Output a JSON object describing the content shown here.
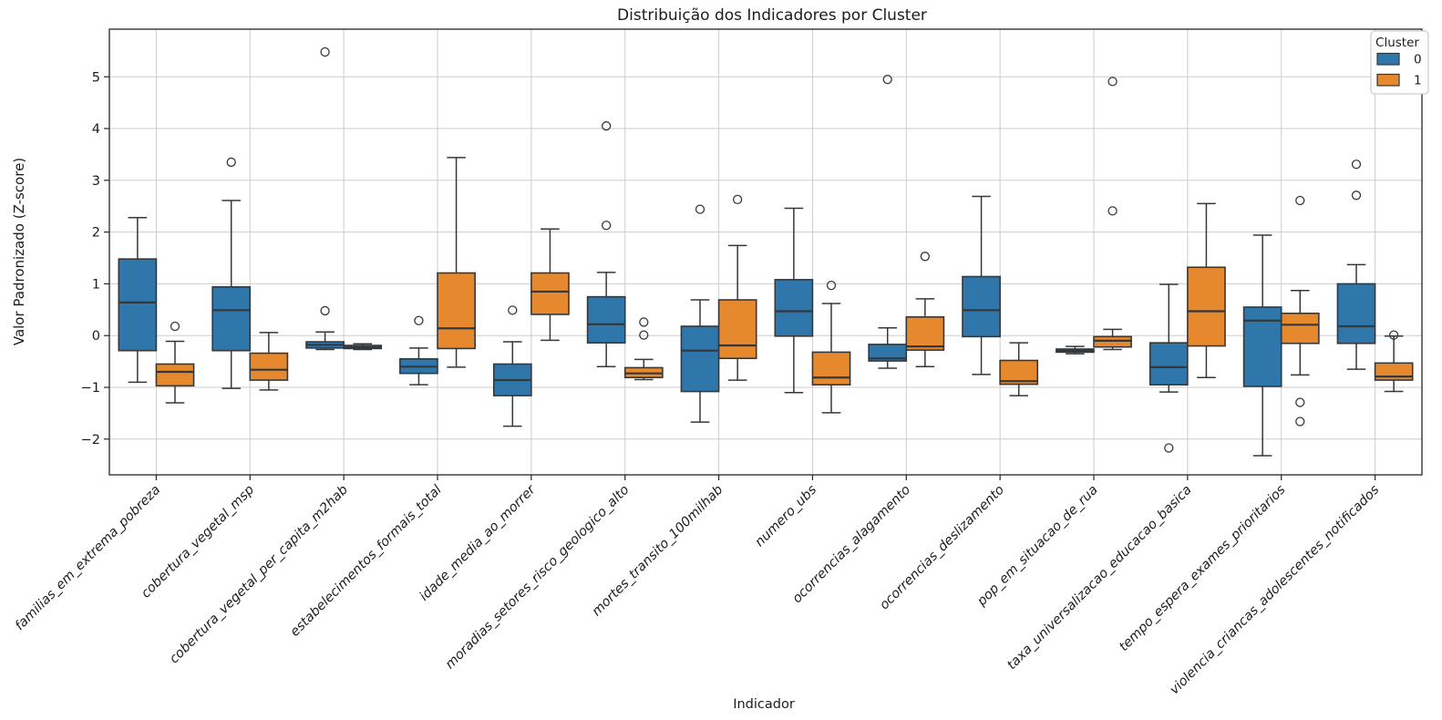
{
  "chart_data": {
    "type": "boxplot",
    "title": "Distribuição dos Indicadores por Cluster",
    "xlabel": "Indicador",
    "ylabel": "Valor Padronizado (Z-score)",
    "grid": true,
    "legend_position": "upper right",
    "y_ticks": [
      -2,
      -1,
      0,
      1,
      2,
      3,
      4,
      5
    ],
    "ylim": [
      -2.69,
      5.92
    ],
    "legend": {
      "title": "Cluster",
      "items": [
        {
          "label": "0",
          "color": "#2f77ab"
        },
        {
          "label": "1",
          "color": "#e6892e"
        }
      ]
    },
    "categories": [
      "familias_em_extrema_pobreza",
      "cobertura_vegetal_msp",
      "cobertura_vegetal_per_capita_m2hab",
      "estabelecimentos_formais_total",
      "idade_media_ao_morrer",
      "moradias_setores_risco_geologico_alto",
      "mortes_transito_100milhab",
      "numero_ubs",
      "ocorrencias_alagamento",
      "ocorrencias_deslizamento",
      "pop_em_situacao_de_rua",
      "taxa_universalizacao_educacao_basica",
      "tempo_espera_exames_prioritarios",
      "violencia_criancas_adolescentes_notificados"
    ],
    "series": [
      {
        "name": "0",
        "color": "#2f77ab",
        "boxes": [
          {
            "whislo": -0.9,
            "q1": -0.29,
            "med": 0.64,
            "q3": 1.48,
            "whishi": 2.28,
            "fliers": []
          },
          {
            "whislo": -1.02,
            "q1": -0.29,
            "med": 0.49,
            "q3": 0.94,
            "whishi": 2.61,
            "fliers": [
              3.35
            ]
          },
          {
            "whislo": -0.27,
            "q1": -0.24,
            "med": -0.18,
            "q3": -0.12,
            "whishi": 0.07,
            "fliers": [
              5.48,
              0.48
            ]
          },
          {
            "whislo": -0.95,
            "q1": -0.73,
            "med": -0.6,
            "q3": -0.45,
            "whishi": -0.24,
            "fliers": [
              0.29
            ]
          },
          {
            "whislo": -1.75,
            "q1": -1.16,
            "med": -0.86,
            "q3": -0.55,
            "whishi": -0.12,
            "fliers": [
              0.49
            ]
          },
          {
            "whislo": -0.6,
            "q1": -0.14,
            "med": 0.22,
            "q3": 0.75,
            "whishi": 1.22,
            "fliers": [
              4.05,
              2.13
            ]
          },
          {
            "whislo": -1.67,
            "q1": -1.08,
            "med": -0.29,
            "q3": 0.18,
            "whishi": 0.69,
            "fliers": [
              2.44
            ]
          },
          {
            "whislo": -1.1,
            "q1": -0.01,
            "med": 0.47,
            "q3": 1.08,
            "whishi": 2.46,
            "fliers": []
          },
          {
            "whislo": -0.63,
            "q1": -0.49,
            "med": -0.44,
            "q3": -0.17,
            "whishi": 0.15,
            "fliers": [
              4.95
            ]
          },
          {
            "whislo": -0.75,
            "q1": -0.02,
            "med": 0.49,
            "q3": 1.14,
            "whishi": 2.69,
            "fliers": []
          },
          {
            "whislo": -0.35,
            "q1": -0.32,
            "med": -0.29,
            "q3": -0.26,
            "whishi": -0.21,
            "fliers": []
          },
          {
            "whislo": -1.09,
            "q1": -0.95,
            "med": -0.61,
            "q3": -0.14,
            "whishi": 0.99,
            "fliers": [
              -2.17
            ]
          },
          {
            "whislo": -2.32,
            "q1": -0.98,
            "med": 0.29,
            "q3": 0.55,
            "whishi": 1.94,
            "fliers": []
          },
          {
            "whislo": -0.65,
            "q1": -0.15,
            "med": 0.18,
            "q3": 1.0,
            "whishi": 1.37,
            "fliers": [
              3.31,
              2.71
            ]
          }
        ]
      },
      {
        "name": "1",
        "color": "#e6892e",
        "boxes": [
          {
            "whislo": -1.3,
            "q1": -0.97,
            "med": -0.7,
            "q3": -0.55,
            "whishi": -0.11,
            "fliers": [
              0.18
            ]
          },
          {
            "whislo": -1.05,
            "q1": -0.86,
            "med": -0.66,
            "q3": -0.34,
            "whishi": 0.06,
            "fliers": []
          },
          {
            "whislo": -0.27,
            "q1": -0.25,
            "med": -0.22,
            "q3": -0.19,
            "whishi": -0.16,
            "fliers": []
          },
          {
            "whislo": -0.61,
            "q1": -0.25,
            "med": 0.14,
            "q3": 1.21,
            "whishi": 3.44,
            "fliers": []
          },
          {
            "whislo": -0.09,
            "q1": 0.41,
            "med": 0.85,
            "q3": 1.21,
            "whishi": 2.06,
            "fliers": []
          },
          {
            "whislo": -0.85,
            "q1": -0.81,
            "med": -0.73,
            "q3": -0.62,
            "whishi": -0.46,
            "fliers": [
              0.26,
              0.01
            ]
          },
          {
            "whislo": -0.86,
            "q1": -0.44,
            "med": -0.19,
            "q3": 0.69,
            "whishi": 1.74,
            "fliers": [
              2.63
            ]
          },
          {
            "whislo": -1.49,
            "q1": -0.95,
            "med": -0.81,
            "q3": -0.32,
            "whishi": 0.62,
            "fliers": [
              0.97
            ]
          },
          {
            "whislo": -0.6,
            "q1": -0.28,
            "med": -0.21,
            "q3": 0.36,
            "whishi": 0.71,
            "fliers": [
              1.53
            ]
          },
          {
            "whislo": -1.16,
            "q1": -0.94,
            "med": -0.88,
            "q3": -0.48,
            "whishi": -0.14,
            "fliers": []
          },
          {
            "whislo": -0.27,
            "q1": -0.22,
            "med": -0.1,
            "q3": -0.02,
            "whishi": 0.12,
            "fliers": [
              4.91,
              2.41
            ]
          },
          {
            "whislo": -0.81,
            "q1": -0.2,
            "med": 0.47,
            "q3": 1.32,
            "whishi": 2.55,
            "fliers": []
          },
          {
            "whislo": -0.76,
            "q1": -0.15,
            "med": 0.21,
            "q3": 0.43,
            "whishi": 0.87,
            "fliers": [
              2.61,
              -1.29,
              -1.66
            ]
          },
          {
            "whislo": -1.08,
            "q1": -0.86,
            "med": -0.79,
            "q3": -0.53,
            "whishi": -0.01,
            "fliers": [
              0.01
            ]
          }
        ]
      }
    ]
  }
}
